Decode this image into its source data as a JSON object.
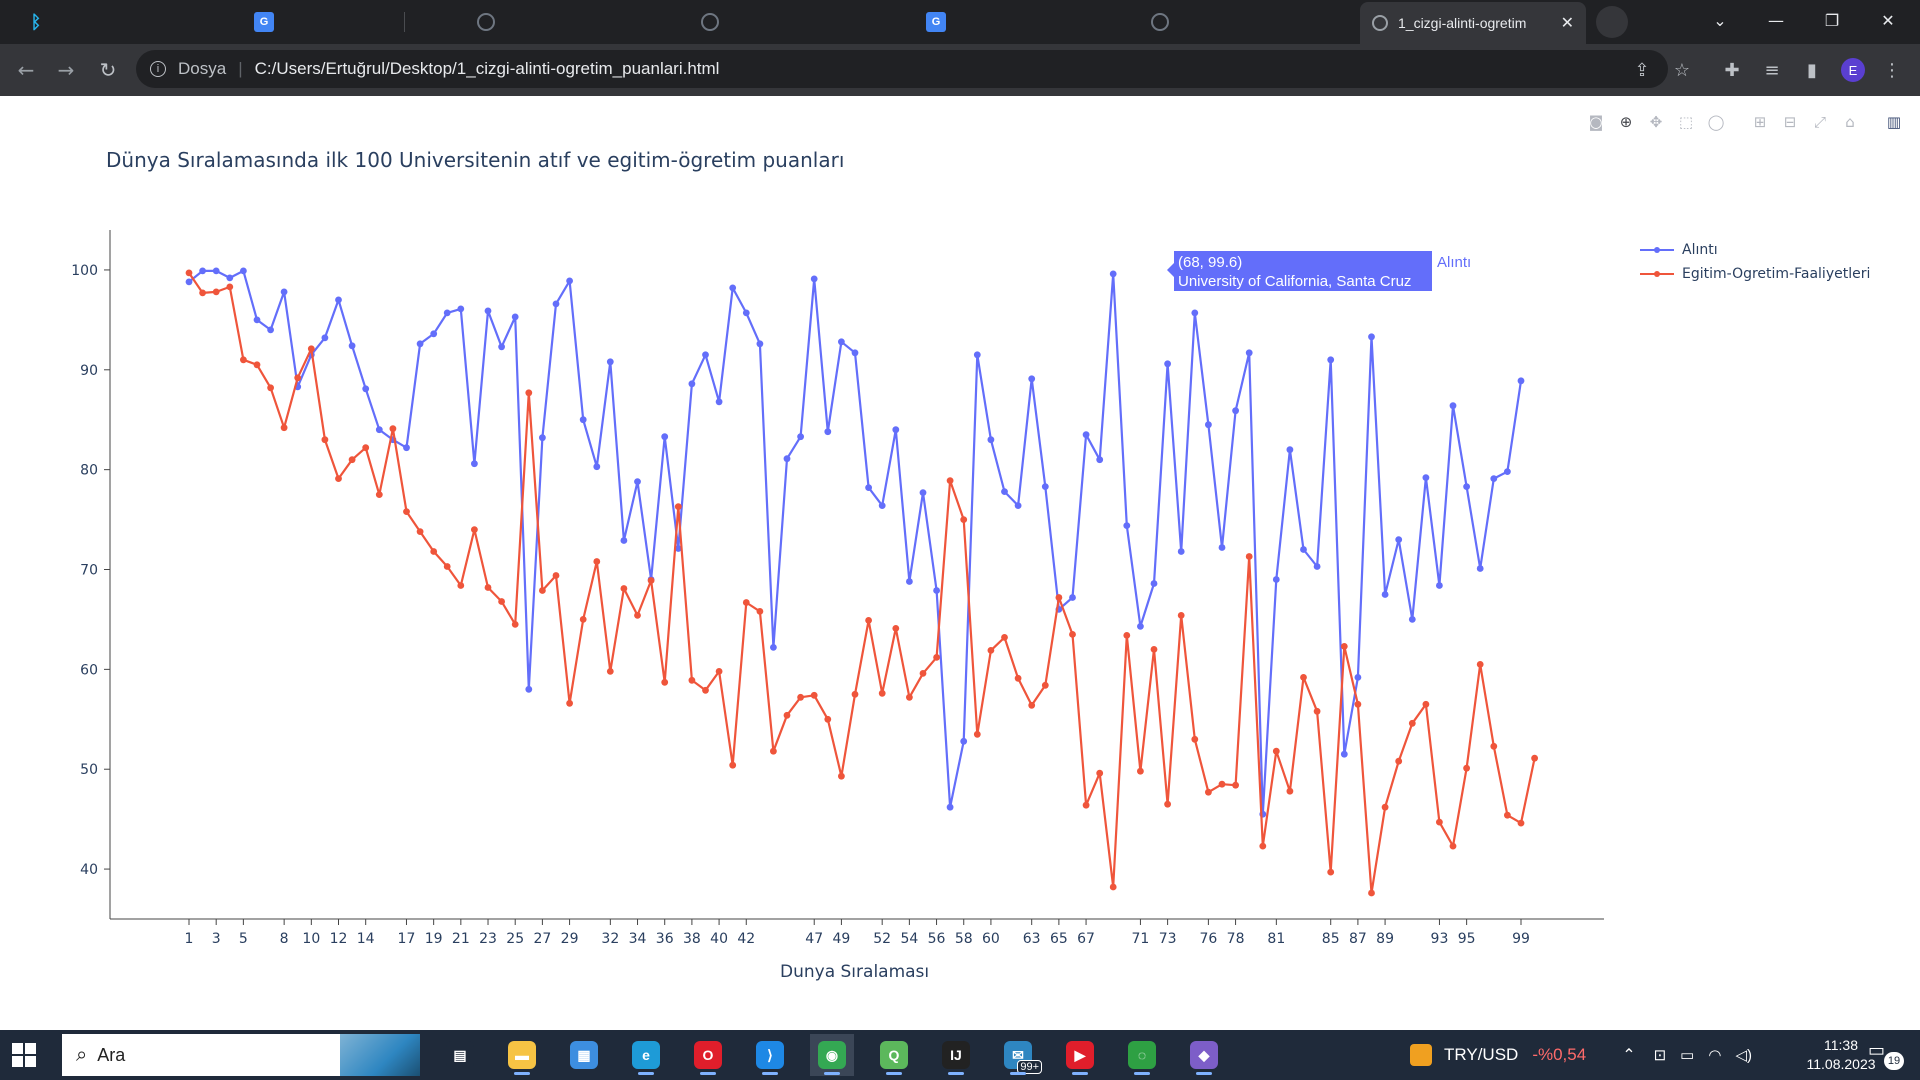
{
  "browser": {
    "tabs": [
      {
        "icon": "bing-icon",
        "color": "#1da1f2"
      },
      {
        "icon": "google-translate-icon",
        "color": "#4285f4"
      },
      {
        "icon": "github-icon",
        "color": "#6e7681"
      },
      {
        "icon": "github-icon",
        "color": "#6e7681"
      },
      {
        "icon": "google-translate-icon",
        "color": "#4285f4"
      },
      {
        "icon": "globe-icon",
        "color": "#6e7681"
      }
    ],
    "active_tab_title": "1_cizgi-alinti-ogretim",
    "address": {
      "scheme_label": "Dosya",
      "url": "C:/Users/Ertuğrul/Desktop/1_cizgi-alinti-ogretim_puanlari.html"
    },
    "profile_initial": "E"
  },
  "plot": {
    "title": "Dünya Sıralamasında ilk 100 Universitenin atıf ve egitim-ögretim puanları",
    "hover": {
      "coords": "(68, 99.6)",
      "name": "University of California, Santa Cruz",
      "series": "Alıntı"
    }
  },
  "chart_data": {
    "type": "line",
    "title": "Dünya Sıralamasında ilk 100 Universitenin atıf ve egitim-ögretim puanları",
    "xlabel": "Dunya Sıralaması",
    "ylabel": "",
    "ylim": [
      35,
      104
    ],
    "yticks": [
      40,
      50,
      60,
      70,
      80,
      90,
      100
    ],
    "xticks": [
      "1",
      "3",
      "5",
      "8",
      "10",
      "12",
      "14",
      "17",
      "19",
      "21",
      "23",
      "25",
      "27",
      "29",
      "32",
      "34",
      "36",
      "38",
      "40",
      "42",
      "47",
      "49",
      "52",
      "54",
      "56",
      "58",
      "60",
      "63",
      "65",
      "67",
      "71",
      "73",
      "76",
      "78",
      "81",
      "85",
      "87",
      "89",
      "93",
      "95",
      "99"
    ],
    "legend_position": "top-right",
    "series": [
      {
        "name": "Alıntı",
        "color": "#636efa",
        "values": [
          98.8,
          99.9,
          99.9,
          99.2,
          99.9,
          95.0,
          94.0,
          97.8,
          88.3,
          91.5,
          93.2,
          97.0,
          92.4,
          88.1,
          84.0,
          83.0,
          82.2,
          92.6,
          93.6,
          95.7,
          96.1,
          80.6,
          95.9,
          92.3,
          95.3,
          58.0,
          83.2,
          96.6,
          98.9,
          85.0,
          80.3,
          90.8,
          72.9,
          78.8,
          69.0,
          83.3,
          72.1,
          88.6,
          91.5,
          86.8,
          98.2,
          95.7,
          92.6,
          62.2,
          81.1,
          83.3,
          99.1,
          83.8,
          92.8,
          91.7,
          78.2,
          76.4,
          84.0,
          68.8,
          77.7,
          67.9,
          46.2,
          52.8,
          91.5,
          83.0,
          77.8,
          76.4,
          89.1,
          78.3,
          66.0,
          67.2,
          83.5,
          81.0,
          99.6,
          74.4,
          64.3,
          68.6,
          90.6,
          71.8,
          95.7,
          84.5,
          72.2,
          85.9,
          91.7,
          45.5,
          69.0,
          82.0,
          72.0,
          70.3,
          91.0,
          51.5,
          59.2,
          93.3,
          67.5,
          73.0,
          65.0,
          79.2,
          68.4,
          86.4,
          78.3,
          70.1,
          79.1,
          79.8,
          88.9
        ]
      },
      {
        "name": "Egitim-Ogretim-Faaliyetleri",
        "color": "#ef553b",
        "values": [
          99.7,
          97.7,
          97.8,
          98.3,
          91.0,
          90.5,
          88.2,
          84.2,
          89.2,
          92.1,
          83.0,
          79.1,
          81.0,
          82.2,
          77.5,
          84.1,
          75.8,
          73.8,
          71.8,
          70.3,
          68.4,
          74.0,
          68.2,
          66.8,
          64.5,
          87.7,
          67.9,
          69.4,
          56.6,
          65.0,
          70.8,
          59.8,
          68.1,
          65.4,
          68.9,
          58.7,
          76.3,
          58.9,
          57.9,
          59.8,
          50.4,
          66.7,
          65.8,
          51.8,
          55.4,
          57.2,
          57.4,
          55.0,
          49.3,
          57.5,
          64.9,
          57.6,
          64.1,
          57.2,
          59.6,
          61.2,
          78.9,
          75.0,
          53.5,
          61.9,
          63.2,
          59.1,
          56.4,
          58.4,
          67.2,
          63.5,
          46.4,
          49.6,
          38.2,
          63.4,
          49.8,
          62.0,
          46.5,
          65.4,
          53.0,
          47.7,
          48.5,
          48.4,
          71.3,
          42.3,
          51.8,
          47.8,
          59.2,
          55.8,
          39.7,
          62.3,
          56.5,
          37.6,
          46.2,
          50.8,
          54.6,
          56.5,
          44.7,
          42.3,
          50.1,
          60.5,
          52.3,
          45.4,
          44.6,
          51.1
        ]
      }
    ]
  },
  "taskbar": {
    "search_placeholder": "Ara",
    "apps": [
      {
        "name": "task-view-icon",
        "color": "#1f2a3a",
        "glyph": "▤"
      },
      {
        "name": "file-explorer-icon",
        "color": "#f6c344",
        "glyph": "▬"
      },
      {
        "name": "microsoft-store-icon",
        "color": "#3d8ee0",
        "glyph": "▦"
      },
      {
        "name": "edge-icon",
        "color": "#1e9bd7",
        "glyph": "e"
      },
      {
        "name": "opera-icon",
        "color": "#e01e2b",
        "glyph": "O"
      },
      {
        "name": "vscode-icon",
        "color": "#1e88e5",
        "glyph": "⟩"
      },
      {
        "name": "chrome-icon",
        "color": "#34a853",
        "glyph": "◉"
      },
      {
        "name": "greenshot-icon",
        "color": "#5cb85c",
        "glyph": "Q"
      },
      {
        "name": "intellij-icon",
        "color": "#222222",
        "glyph": "IJ"
      },
      {
        "name": "mail-icon",
        "color": "#2e86c1",
        "glyph": "✉"
      },
      {
        "name": "youtube-music-icon",
        "color": "#e01e2b",
        "glyph": "▶"
      },
      {
        "name": "refresh-circle-icon",
        "color": "#2ea043",
        "glyph": "◌"
      },
      {
        "name": "git-icon",
        "color": "#7d5ec8",
        "glyph": "◆"
      }
    ],
    "mail_badge": "99+",
    "currency": {
      "label": "TRY/USD",
      "change": "-%0,54"
    },
    "time": "11:38",
    "date": "11.08.2023",
    "notification_count": "19"
  }
}
